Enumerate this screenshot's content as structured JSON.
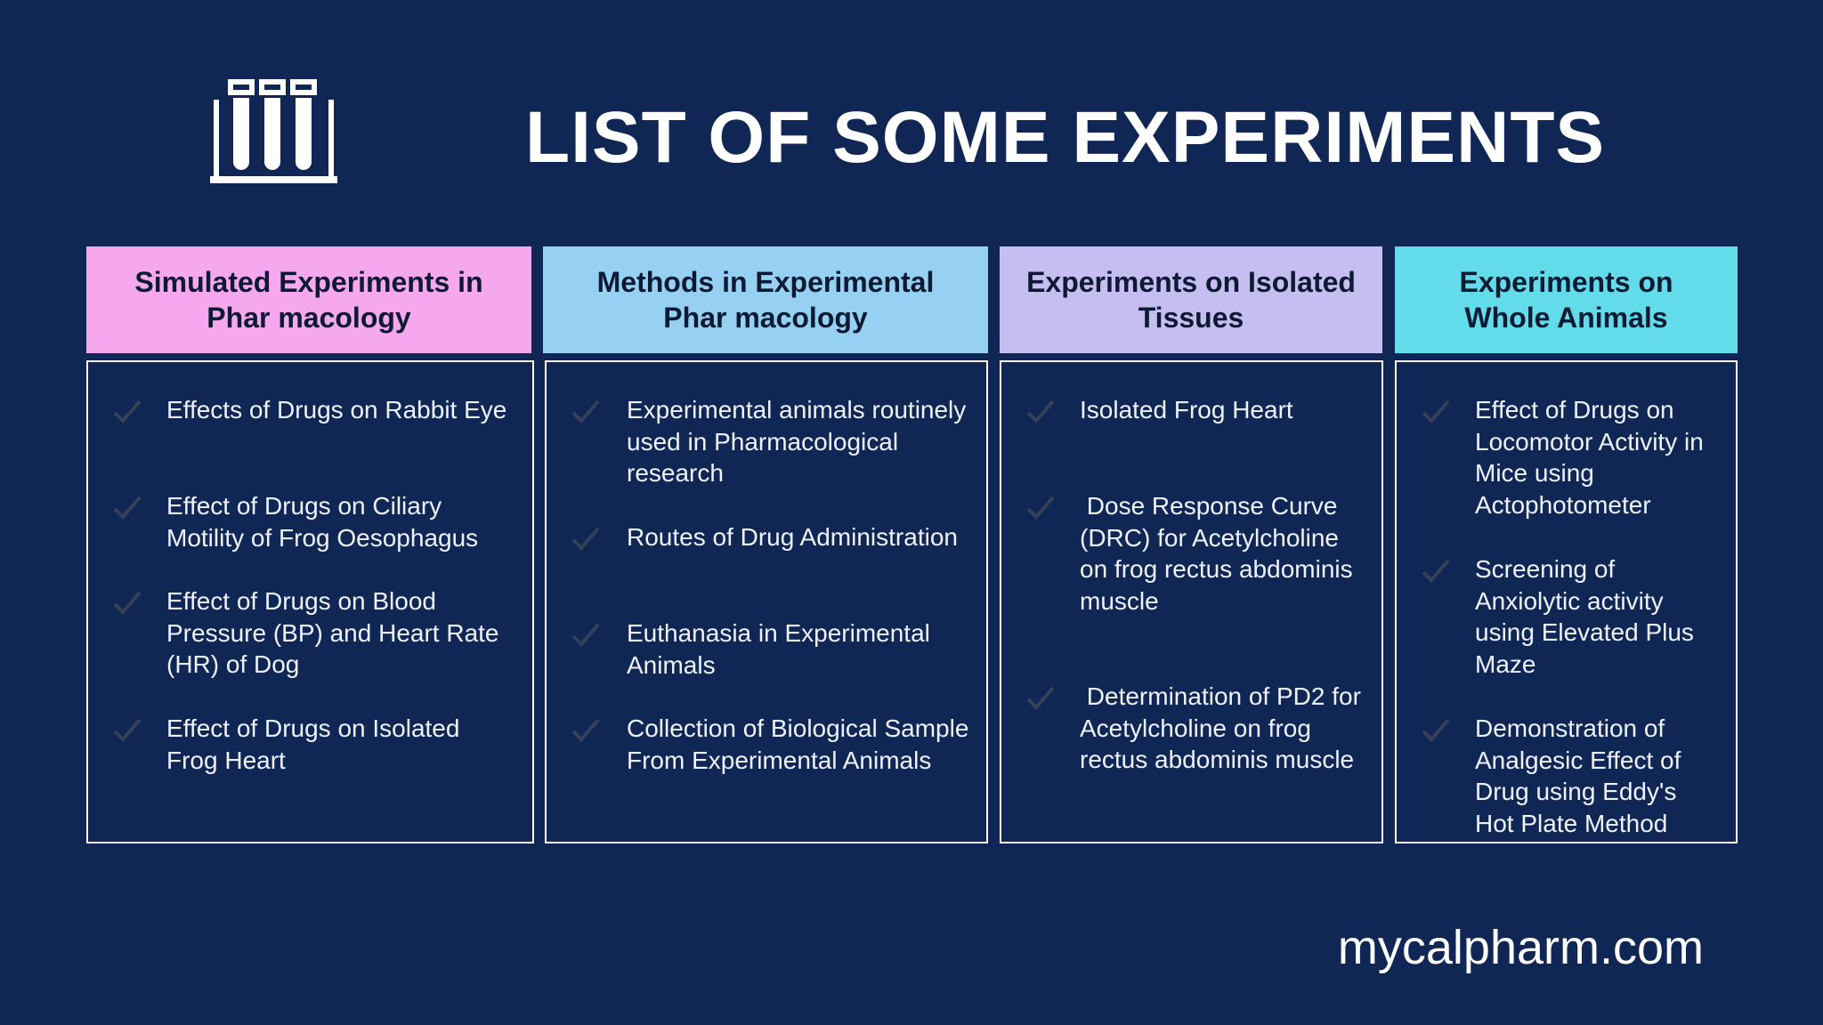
{
  "header": {
    "logo_icon": "test-tubes-rack-icon",
    "title": "LIST OF SOME EXPERIMENTS"
  },
  "columns": [
    {
      "header": "Simulated Experiments in Phar macology",
      "color": "#f5a8ee",
      "items": [
        "Effects of Drugs on Rabbit Eye",
        "Effect of Drugs on Ciliary Motility of Frog Oesophagus",
        "Effect of Drugs on Blood Pressure (BP) and Heart Rate (HR) of Dog",
        "Effect of Drugs on Isolated Frog Heart"
      ]
    },
    {
      "header": "Methods in Experimental Phar macology",
      "color": "#96d0f2",
      "items": [
        "Experimental animals routinely used in Pharmacological research",
        "Routes of Drug Administration",
        "Euthanasia in Experimental Animals",
        "Collection of Biological Sample From Experimental Animals"
      ]
    },
    {
      "header": "Experiments on Isolated Tissues",
      "color": "#c6bdf0",
      "items": [
        "Isolated Frog Heart",
        " Dose Response Curve (DRC) for Acetylcholine on frog rectus abdominis muscle",
        " Determination of PD2 for Acetylcholine on frog rectus abdominis muscle"
      ]
    },
    {
      "header": "Experiments on Whole Animals",
      "color": "#62dcea",
      "items": [
        "Effect of Drugs on Locomotor Activity in Mice using Actophotometer",
        "Screening of Anxiolytic activity using Elevated Plus Maze",
        "Demonstration of Analgesic Effect of Drug using Eddy's Hot Plate Method"
      ]
    }
  ],
  "check_icon": "checkmark-icon",
  "footer": {
    "website": "mycalpharm.com"
  }
}
